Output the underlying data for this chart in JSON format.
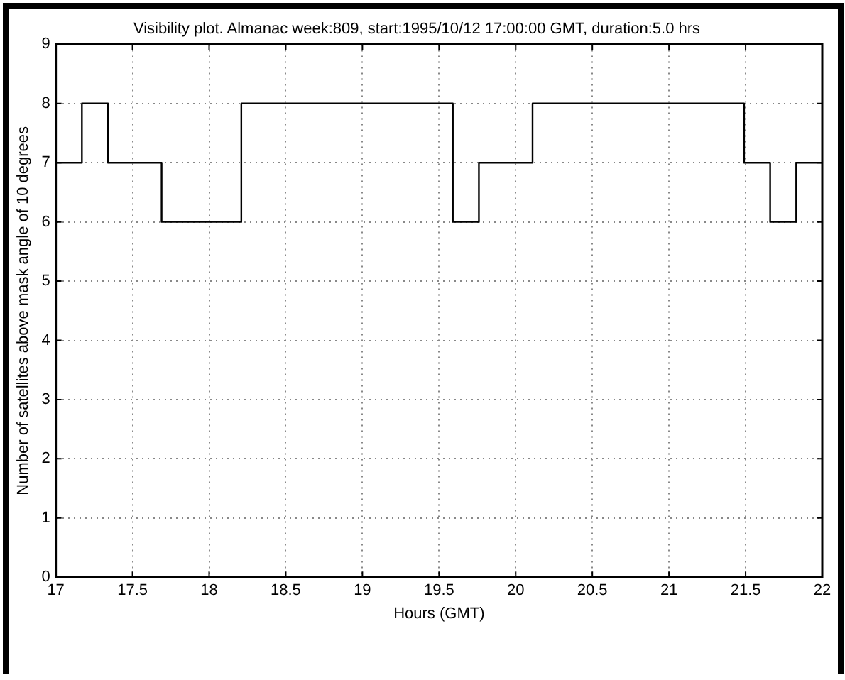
{
  "chart_data": {
    "type": "step",
    "title": "Visibility plot. Almanac week:809, start:1995/10/12 17:00:00 GMT, duration:5.0 hrs",
    "xlabel": "Hours (GMT)",
    "ylabel": "Number of satellites above mask angle of 10 degrees",
    "x": [
      17,
      17.17,
      17.34,
      17.69,
      18.21,
      19.59,
      19.76,
      20.11,
      21.49,
      21.66,
      21.83,
      22
    ],
    "series": [
      {
        "color": "#000000",
        "values": [
          7,
          8,
          7,
          6,
          8,
          6,
          7,
          8,
          7,
          6,
          7,
          7
        ]
      }
    ],
    "xlim": [
      17,
      22
    ],
    "xticks": [
      17,
      17.5,
      18,
      18.5,
      19,
      19.5,
      20,
      20.5,
      21,
      21.5,
      22
    ],
    "ylim": [
      0,
      9
    ],
    "yticks": [
      0,
      1,
      2,
      3,
      4,
      5,
      6,
      7,
      8,
      9
    ],
    "grid": true,
    "legend": false
  }
}
